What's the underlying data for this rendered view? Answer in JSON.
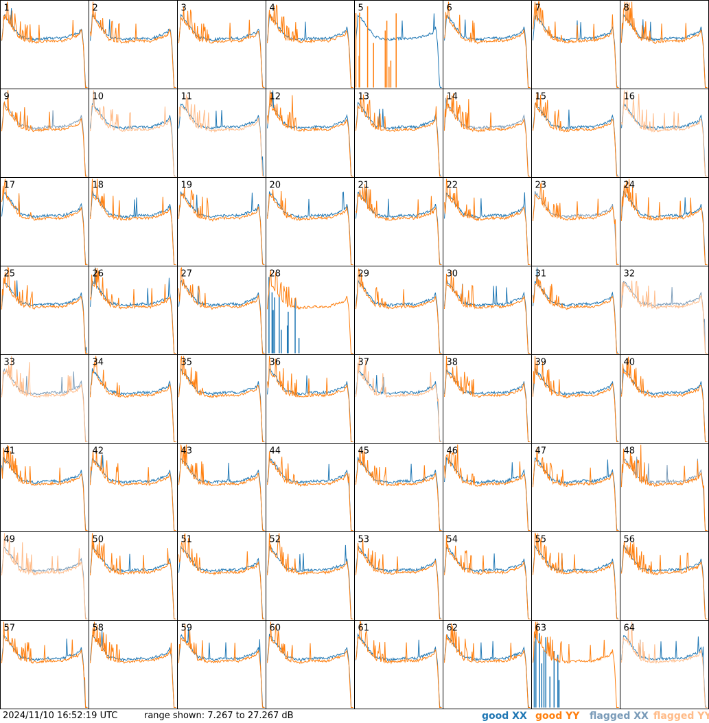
{
  "colors": {
    "good_xx": "#1f77b4",
    "good_yy": "#ff7f0e",
    "flagged_xx": "#7a9bb8",
    "flagged_yy": "#ffbb88"
  },
  "footer": {
    "timestamp": "2024/11/10 16:52:19 UTC",
    "range_text": "range shown: 7.267 to 27.267 dB"
  },
  "legend": {
    "good_xx": "good XX",
    "good_yy": "good YY",
    "flagged_xx": "flagged XX",
    "flagged_yy": "flagged YY"
  },
  "chart_data": {
    "type": "line",
    "layout": "8x8 small multiples",
    "ylim": [
      7.267,
      27.267
    ],
    "yunit": "dB",
    "panels": [
      {
        "id": "1",
        "xx": "good",
        "yy": "good"
      },
      {
        "id": "2",
        "xx": "good",
        "yy": "good"
      },
      {
        "id": "3",
        "xx": "good",
        "yy": "good"
      },
      {
        "id": "4",
        "xx": "good",
        "yy": "good"
      },
      {
        "id": "5",
        "xx": "good",
        "yy": "none"
      },
      {
        "id": "6",
        "xx": "good",
        "yy": "good"
      },
      {
        "id": "7",
        "xx": "good",
        "yy": "good"
      },
      {
        "id": "8",
        "xx": "good",
        "yy": "good"
      },
      {
        "id": "9",
        "xx": "flagged",
        "yy": "good"
      },
      {
        "id": "10",
        "xx": "good",
        "yy": "flagged"
      },
      {
        "id": "11",
        "xx": "good",
        "yy": "flagged"
      },
      {
        "id": "12",
        "xx": "good",
        "yy": "good"
      },
      {
        "id": "13",
        "xx": "good",
        "yy": "good"
      },
      {
        "id": "14",
        "xx": "flagged",
        "yy": "good"
      },
      {
        "id": "15",
        "xx": "good",
        "yy": "good"
      },
      {
        "id": "16",
        "xx": "good",
        "yy": "flagged"
      },
      {
        "id": "17",
        "xx": "good",
        "yy": "good"
      },
      {
        "id": "18",
        "xx": "good",
        "yy": "good"
      },
      {
        "id": "19",
        "xx": "good",
        "yy": "good"
      },
      {
        "id": "20",
        "xx": "good",
        "yy": "good"
      },
      {
        "id": "21",
        "xx": "good",
        "yy": "good"
      },
      {
        "id": "22",
        "xx": "good",
        "yy": "good"
      },
      {
        "id": "23",
        "xx": "flagged",
        "yy": "good"
      },
      {
        "id": "24",
        "xx": "good",
        "yy": "good"
      },
      {
        "id": "25",
        "xx": "good",
        "yy": "good"
      },
      {
        "id": "26",
        "xx": "good",
        "yy": "good"
      },
      {
        "id": "27",
        "xx": "good",
        "yy": "good"
      },
      {
        "id": "28",
        "xx": "none",
        "yy": "good"
      },
      {
        "id": "29",
        "xx": "good",
        "yy": "good"
      },
      {
        "id": "30",
        "xx": "good",
        "yy": "good"
      },
      {
        "id": "31",
        "xx": "good",
        "yy": "good"
      },
      {
        "id": "32",
        "xx": "flagged",
        "yy": "flagged"
      },
      {
        "id": "33",
        "xx": "flagged",
        "yy": "flagged"
      },
      {
        "id": "34",
        "xx": "good",
        "yy": "good"
      },
      {
        "id": "35",
        "xx": "good",
        "yy": "good"
      },
      {
        "id": "36",
        "xx": "good",
        "yy": "good"
      },
      {
        "id": "37",
        "xx": "good",
        "yy": "flagged"
      },
      {
        "id": "38",
        "xx": "good",
        "yy": "good"
      },
      {
        "id": "39",
        "xx": "good",
        "yy": "good"
      },
      {
        "id": "40",
        "xx": "good",
        "yy": "good"
      },
      {
        "id": "41",
        "xx": "good",
        "yy": "good"
      },
      {
        "id": "42",
        "xx": "good",
        "yy": "good"
      },
      {
        "id": "43",
        "xx": "good",
        "yy": "good"
      },
      {
        "id": "44",
        "xx": "good",
        "yy": "good"
      },
      {
        "id": "45",
        "xx": "good",
        "yy": "good"
      },
      {
        "id": "46",
        "xx": "good",
        "yy": "good"
      },
      {
        "id": "47",
        "xx": "good",
        "yy": "good"
      },
      {
        "id": "48",
        "xx": "flagged",
        "yy": "good"
      },
      {
        "id": "49",
        "xx": "flagged",
        "yy": "flagged"
      },
      {
        "id": "50",
        "xx": "good",
        "yy": "good"
      },
      {
        "id": "51",
        "xx": "good",
        "yy": "good"
      },
      {
        "id": "52",
        "xx": "good",
        "yy": "good"
      },
      {
        "id": "53",
        "xx": "good",
        "yy": "good"
      },
      {
        "id": "54",
        "xx": "good",
        "yy": "good"
      },
      {
        "id": "55",
        "xx": "good",
        "yy": "good"
      },
      {
        "id": "56",
        "xx": "good",
        "yy": "good"
      },
      {
        "id": "57",
        "xx": "good",
        "yy": "good"
      },
      {
        "id": "58",
        "xx": "good",
        "yy": "good"
      },
      {
        "id": "59",
        "xx": "good",
        "yy": "good"
      },
      {
        "id": "60",
        "xx": "good",
        "yy": "good"
      },
      {
        "id": "61",
        "xx": "good",
        "yy": "good"
      },
      {
        "id": "62",
        "xx": "good",
        "yy": "good"
      },
      {
        "id": "63",
        "xx": "none",
        "yy": "good"
      },
      {
        "id": "64",
        "xx": "good",
        "yy": "flagged"
      }
    ]
  }
}
